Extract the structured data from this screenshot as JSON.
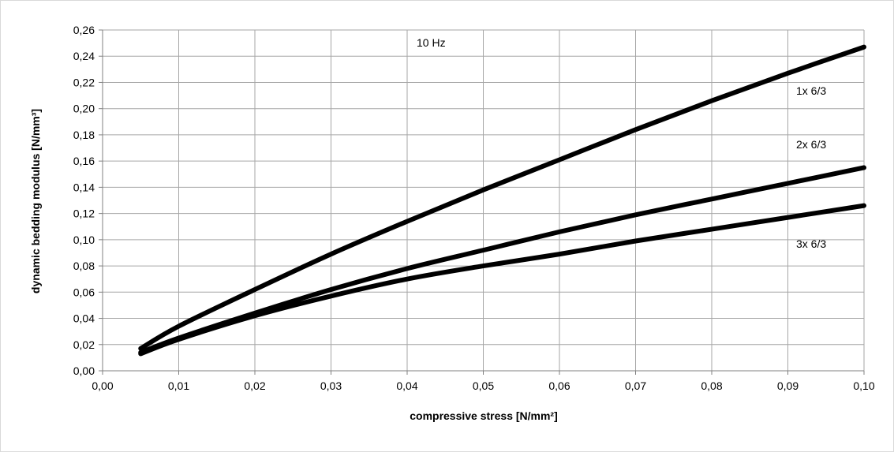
{
  "chart_data": {
    "type": "line",
    "title": "",
    "xlabel": "compressive stress [N/mm²]",
    "ylabel": "dynamic bedding modulus [N/mm³]",
    "xlim": [
      0,
      0.1
    ],
    "ylim": [
      0,
      0.26
    ],
    "x_ticks": [
      0,
      0.01,
      0.02,
      0.03,
      0.04,
      0.05,
      0.06,
      0.07,
      0.08,
      0.09,
      0.1
    ],
    "y_ticks": [
      0,
      0.02,
      0.04,
      0.06,
      0.08,
      0.1,
      0.12,
      0.14,
      0.16,
      0.18,
      0.2,
      0.22,
      0.24,
      0.26
    ],
    "x_tick_labels": [
      "0,00",
      "0,01",
      "0,02",
      "0,03",
      "0,04",
      "0,05",
      "0,06",
      "0,07",
      "0,08",
      "0,09",
      "0,10"
    ],
    "y_tick_labels": [
      "0,00",
      "0,02",
      "0,04",
      "0,06",
      "0,08",
      "0,10",
      "0,12",
      "0,14",
      "0,16",
      "0,18",
      "0,20",
      "0,22",
      "0,24",
      "0,26"
    ],
    "grid": true,
    "legend": "none",
    "line_color": "#000000",
    "annotations": [
      {
        "text": "10 Hz"
      },
      {
        "text": "1x 6/3"
      },
      {
        "text": "2x 6/3"
      },
      {
        "text": "3x 6/3"
      }
    ],
    "series": [
      {
        "x": [
          0.005,
          0.01,
          0.02,
          0.03,
          0.04,
          0.05,
          0.06,
          0.07,
          0.08,
          0.09,
          0.1
        ],
        "y": [
          0.017,
          0.034,
          0.062,
          0.089,
          0.114,
          0.138,
          0.161,
          0.184,
          0.206,
          0.227,
          0.247
        ]
      },
      {
        "x": [
          0.005,
          0.01,
          0.02,
          0.03,
          0.04,
          0.05,
          0.06,
          0.07,
          0.08,
          0.09,
          0.1
        ],
        "y": [
          0.014,
          0.025,
          0.044,
          0.062,
          0.078,
          0.092,
          0.106,
          0.119,
          0.131,
          0.143,
          0.155
        ]
      },
      {
        "x": [
          0.005,
          0.01,
          0.02,
          0.03,
          0.04,
          0.05,
          0.06,
          0.07,
          0.08,
          0.09,
          0.1
        ],
        "y": [
          0.013,
          0.024,
          0.042,
          0.057,
          0.07,
          0.08,
          0.089,
          0.099,
          0.108,
          0.117,
          0.126
        ]
      }
    ]
  }
}
